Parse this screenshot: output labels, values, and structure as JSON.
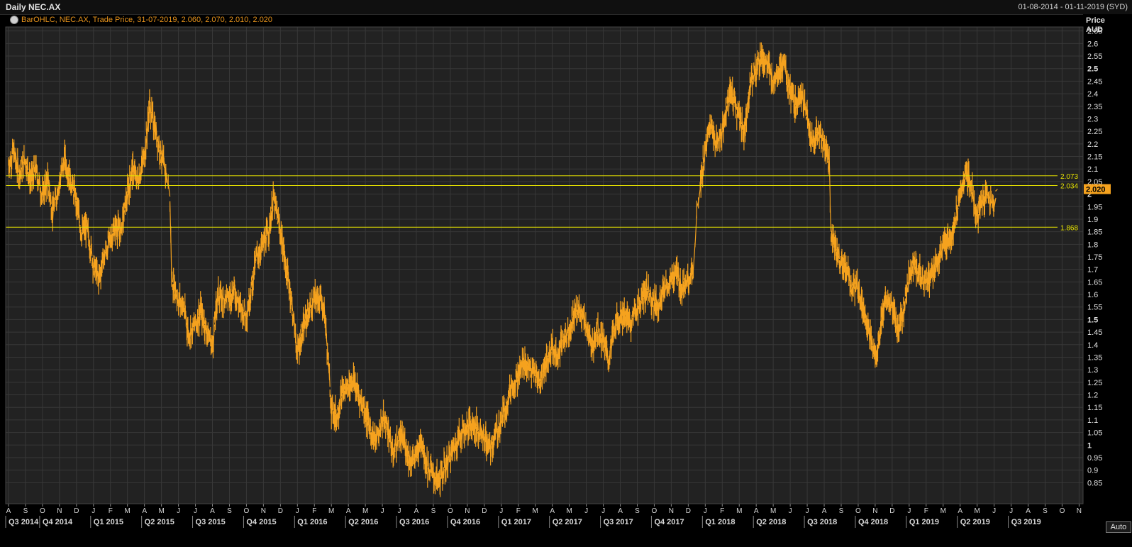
{
  "header": {
    "title": "Daily NEC.AX",
    "date_range": "01-08-2014 - 01-11-2019 (SYD)",
    "legend": "BarOHLC, NEC.AX, Trade Price, 31-07-2019, 2.060, 2.070, 2.010, 2.020"
  },
  "auto_button": "Auto",
  "colors": {
    "series": "#f5a21e",
    "hline": "#e6e200",
    "last_tag": "#f5a21e",
    "background": "#222222",
    "grid": "#383838"
  },
  "chart_data": {
    "type": "line",
    "title": "Daily NEC.AX",
    "ylabel": "Price AUD",
    "ylim": [
      0.8,
      2.7
    ],
    "y_ticks": [
      "2.65",
      "2.6",
      "2.55",
      "2.5",
      "2.45",
      "2.4",
      "2.35",
      "2.3",
      "2.25",
      "2.2",
      "2.15",
      "2.1",
      "2.05",
      "2",
      "1.95",
      "1.9",
      "1.85",
      "1.8",
      "1.75",
      "1.7",
      "1.65",
      "1.6",
      "1.55",
      "1.5",
      "1.45",
      "1.4",
      "1.35",
      "1.3",
      "1.25",
      "1.2",
      "1.15",
      "1.1",
      "1.05",
      "1",
      "0.95",
      "0.9",
      "0.85"
    ],
    "y_ticks_bold": [
      "2.5",
      "2",
      "1.5",
      "1"
    ],
    "month_labels": [
      "A",
      "S",
      "O",
      "N",
      "D",
      "J",
      "F",
      "M",
      "A",
      "M",
      "J",
      "J",
      "A",
      "S",
      "O",
      "N",
      "D",
      "J",
      "F",
      "M",
      "A",
      "M",
      "J",
      "J",
      "A",
      "S",
      "O",
      "N",
      "D",
      "J",
      "F",
      "M",
      "A",
      "M",
      "J",
      "J",
      "A",
      "S",
      "O",
      "N",
      "D",
      "J",
      "F",
      "M",
      "A",
      "M",
      "J",
      "J",
      "A",
      "S",
      "O",
      "N",
      "D",
      "J",
      "F",
      "M",
      "A",
      "M",
      "J",
      "J",
      "A",
      "S",
      "O",
      "N"
    ],
    "quarters": [
      {
        "label": "Q3 2014",
        "month_index": 0
      },
      {
        "label": "Q4 2014",
        "month_index": 2
      },
      {
        "label": "Q1 2015",
        "month_index": 5
      },
      {
        "label": "Q2 2015",
        "month_index": 8
      },
      {
        "label": "Q3 2015",
        "month_index": 11
      },
      {
        "label": "Q4 2015",
        "month_index": 14
      },
      {
        "label": "Q1 2016",
        "month_index": 17
      },
      {
        "label": "Q2 2016",
        "month_index": 20
      },
      {
        "label": "Q3 2016",
        "month_index": 23
      },
      {
        "label": "Q4 2016",
        "month_index": 26
      },
      {
        "label": "Q1 2017",
        "month_index": 29
      },
      {
        "label": "Q2 2017",
        "month_index": 32
      },
      {
        "label": "Q3 2017",
        "month_index": 35
      },
      {
        "label": "Q4 2017",
        "month_index": 38
      },
      {
        "label": "Q1 2018",
        "month_index": 41
      },
      {
        "label": "Q2 2018",
        "month_index": 44
      },
      {
        "label": "Q3 2018",
        "month_index": 47
      },
      {
        "label": "Q4 2018",
        "month_index": 50
      },
      {
        "label": "Q1 2019",
        "month_index": 53
      },
      {
        "label": "Q2 2019",
        "month_index": 56
      },
      {
        "label": "Q3 2019",
        "month_index": 59
      }
    ],
    "series": [
      {
        "points": [
          [
            0,
            2.12
          ],
          [
            0.3,
            2.17
          ],
          [
            0.6,
            2.08
          ],
          [
            1,
            2.14
          ],
          [
            1.3,
            2.05
          ],
          [
            1.6,
            2.1
          ],
          [
            2,
            1.99
          ],
          [
            2.3,
            2.06
          ],
          [
            2.6,
            1.92
          ],
          [
            3,
            2.05
          ],
          [
            3.3,
            2.14
          ],
          [
            3.6,
            2.07
          ],
          [
            4,
            1.97
          ],
          [
            4.3,
            1.84
          ],
          [
            4.6,
            1.87
          ],
          [
            5,
            1.72
          ],
          [
            5.3,
            1.66
          ],
          [
            5.6,
            1.75
          ],
          [
            6,
            1.82
          ],
          [
            6.3,
            1.87
          ],
          [
            6.6,
            1.85
          ],
          [
            7,
            2.0
          ],
          [
            7.3,
            2.1
          ],
          [
            7.6,
            2.05
          ],
          [
            8,
            2.15
          ],
          [
            8.3,
            2.35
          ],
          [
            8.6,
            2.27
          ],
          [
            9,
            2.15
          ],
          [
            9.3,
            2.07
          ],
          [
            9.5,
            1.99
          ],
          [
            9.6,
            1.66
          ],
          [
            10,
            1.58
          ],
          [
            10.3,
            1.55
          ],
          [
            10.6,
            1.44
          ],
          [
            11,
            1.48
          ],
          [
            11.3,
            1.53
          ],
          [
            11.6,
            1.47
          ],
          [
            12,
            1.39
          ],
          [
            12.3,
            1.6
          ],
          [
            12.6,
            1.58
          ],
          [
            13,
            1.59
          ],
          [
            13.3,
            1.62
          ],
          [
            13.6,
            1.55
          ],
          [
            14,
            1.52
          ],
          [
            14.3,
            1.63
          ],
          [
            14.6,
            1.75
          ],
          [
            15,
            1.8
          ],
          [
            15.3,
            1.85
          ],
          [
            15.6,
            1.98
          ],
          [
            16,
            1.85
          ],
          [
            16.3,
            1.72
          ],
          [
            16.6,
            1.6
          ],
          [
            17,
            1.37
          ],
          [
            17.3,
            1.45
          ],
          [
            17.6,
            1.52
          ],
          [
            18,
            1.58
          ],
          [
            18.3,
            1.59
          ],
          [
            18.6,
            1.53
          ],
          [
            19,
            1.15
          ],
          [
            19.3,
            1.11
          ],
          [
            19.6,
            1.2
          ],
          [
            20,
            1.24
          ],
          [
            20.3,
            1.26
          ],
          [
            20.6,
            1.2
          ],
          [
            21,
            1.13
          ],
          [
            21.3,
            1.06
          ],
          [
            21.6,
            1.01
          ],
          [
            22,
            1.1
          ],
          [
            22.3,
            1.08
          ],
          [
            22.6,
            0.96
          ],
          [
            23,
            1.03
          ],
          [
            23.3,
            1.01
          ],
          [
            23.6,
            0.94
          ],
          [
            24,
            0.95
          ],
          [
            24.3,
            1.03
          ],
          [
            24.6,
            0.92
          ],
          [
            25,
            0.88
          ],
          [
            25.3,
            0.85
          ],
          [
            25.6,
            0.9
          ],
          [
            26,
            0.96
          ],
          [
            26.3,
            1.0
          ],
          [
            26.6,
            1.05
          ],
          [
            27,
            1.07
          ],
          [
            27.3,
            1.09
          ],
          [
            27.6,
            1.06
          ],
          [
            28,
            1.03
          ],
          [
            28.3,
            0.98
          ],
          [
            28.6,
            1.03
          ],
          [
            29,
            1.1
          ],
          [
            29.3,
            1.16
          ],
          [
            29.6,
            1.24
          ],
          [
            30,
            1.27
          ],
          [
            30.3,
            1.34
          ],
          [
            30.6,
            1.3
          ],
          [
            31,
            1.28
          ],
          [
            31.3,
            1.25
          ],
          [
            31.6,
            1.33
          ],
          [
            32,
            1.38
          ],
          [
            32.3,
            1.36
          ],
          [
            32.6,
            1.42
          ],
          [
            33,
            1.46
          ],
          [
            33.3,
            1.52
          ],
          [
            33.6,
            1.55
          ],
          [
            34,
            1.48
          ],
          [
            34.3,
            1.38
          ],
          [
            34.6,
            1.46
          ],
          [
            35,
            1.42
          ],
          [
            35.3,
            1.33
          ],
          [
            35.6,
            1.45
          ],
          [
            36,
            1.52
          ],
          [
            36.3,
            1.51
          ],
          [
            36.6,
            1.49
          ],
          [
            37,
            1.55
          ],
          [
            37.3,
            1.58
          ],
          [
            37.6,
            1.62
          ],
          [
            38,
            1.57
          ],
          [
            38.3,
            1.56
          ],
          [
            38.6,
            1.62
          ],
          [
            39,
            1.65
          ],
          [
            39.3,
            1.7
          ],
          [
            39.6,
            1.62
          ],
          [
            40,
            1.67
          ],
          [
            40.3,
            1.68
          ],
          [
            40.5,
            1.92
          ],
          [
            40.7,
            2.02
          ],
          [
            41,
            2.18
          ],
          [
            41.3,
            2.28
          ],
          [
            41.6,
            2.2
          ],
          [
            42,
            2.25
          ],
          [
            42.3,
            2.36
          ],
          [
            42.6,
            2.4
          ],
          [
            43,
            2.3
          ],
          [
            43.3,
            2.25
          ],
          [
            43.6,
            2.43
          ],
          [
            44,
            2.5
          ],
          [
            44.3,
            2.55
          ],
          [
            44.6,
            2.52
          ],
          [
            45,
            2.45
          ],
          [
            45.3,
            2.5
          ],
          [
            45.6,
            2.52
          ],
          [
            46,
            2.4
          ],
          [
            46.3,
            2.35
          ],
          [
            46.6,
            2.42
          ],
          [
            47,
            2.3
          ],
          [
            47.3,
            2.2
          ],
          [
            47.6,
            2.25
          ],
          [
            48,
            2.2
          ],
          [
            48.3,
            2.12
          ],
          [
            48.4,
            1.85
          ],
          [
            48.7,
            1.78
          ],
          [
            49,
            1.72
          ],
          [
            49.3,
            1.7
          ],
          [
            49.6,
            1.63
          ],
          [
            50,
            1.62
          ],
          [
            50.3,
            1.55
          ],
          [
            50.6,
            1.45
          ],
          [
            51,
            1.35
          ],
          [
            51.3,
            1.45
          ],
          [
            51.6,
            1.58
          ],
          [
            52,
            1.55
          ],
          [
            52.3,
            1.45
          ],
          [
            52.6,
            1.52
          ],
          [
            53,
            1.67
          ],
          [
            53.3,
            1.72
          ],
          [
            53.6,
            1.68
          ],
          [
            54,
            1.65
          ],
          [
            54.3,
            1.68
          ],
          [
            54.6,
            1.72
          ],
          [
            55,
            1.78
          ],
          [
            55.3,
            1.82
          ],
          [
            55.6,
            1.86
          ],
          [
            56,
            1.98
          ],
          [
            56.3,
            2.08
          ],
          [
            56.6,
            2.05
          ],
          [
            57,
            1.9
          ],
          [
            57.3,
            1.97
          ],
          [
            57.6,
            2.0
          ],
          [
            58,
            1.95
          ],
          [
            58.2,
            2.02
          ]
        ]
      }
    ],
    "horizontal_lines": [
      2.073,
      2.034,
      1.868
    ],
    "horizontal_line_labels": [
      "2.073",
      "2.034",
      "1.868"
    ],
    "last_price": 2.02,
    "last_price_label": "2.020",
    "grid": true
  }
}
